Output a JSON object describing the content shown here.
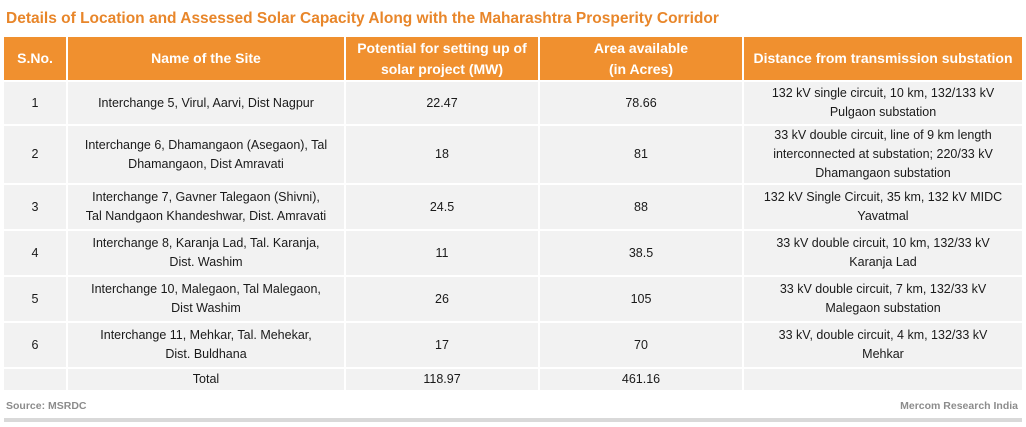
{
  "title": "Details of Location and Assessed Solar Capacity Along with the Maharashtra Prosperity Corridor",
  "headers": {
    "sno": "S.No.",
    "site": "Name of the Site",
    "potential_l1": "Potential for setting up of",
    "potential_l2": "solar project (MW)",
    "area_l1": "Area available",
    "area_l2": "(in Acres)",
    "distance": "Distance from transmission substation"
  },
  "rows": [
    {
      "sno": "1",
      "site": [
        "Interchange 5, Virul, Aarvi, Dist Nagpur"
      ],
      "potential": "22.47",
      "area": "78.66",
      "distance": [
        "132 kV single circuit, 10 km, 132/133 kV",
        "Pulgaon substation"
      ]
    },
    {
      "sno": "2",
      "site": [
        "Interchange 6, Dhamangaon (Asegaon), Tal",
        "Dhamangaon, Dist Amravati"
      ],
      "potential": "18",
      "area": "81",
      "distance": [
        "33 kV double circuit, line of 9 km length",
        "interconnected at substation; 220/33 kV",
        "Dhamangaon substation"
      ]
    },
    {
      "sno": "3",
      "site": [
        "Interchange 7, Gavner Talegaon (Shivni),",
        "Tal Nandgaon Khandeshwar, Dist. Amravati"
      ],
      "potential": "24.5",
      "area": "88",
      "distance": [
        "132 kV Single Circuit, 35 km, 132 kV MIDC",
        "Yavatmal"
      ]
    },
    {
      "sno": "4",
      "site": [
        "Interchange 8, Karanja Lad, Tal. Karanja,",
        "Dist. Washim"
      ],
      "potential": "11",
      "area": "38.5",
      "distance": [
        "33 kV double circuit, 10 km, 132/33 kV",
        "Karanja Lad"
      ]
    },
    {
      "sno": "5",
      "site": [
        "Interchange 10, Malegaon, Tal Malegaon,",
        "Dist Washim"
      ],
      "potential": "26",
      "area": "105",
      "distance": [
        "33 kV double circuit, 7 km, 132/33 kV",
        "Malegaon substation"
      ]
    },
    {
      "sno": "6",
      "site": [
        "Interchange 11, Mehkar, Tal. Mehekar,",
        "Dist. Buldhana"
      ],
      "potential": "17",
      "area": "70",
      "distance": [
        "33 kV, double circuit, 4 km, 132/33 kV",
        "Mehkar"
      ]
    }
  ],
  "total": {
    "label": "Total",
    "potential": "118.97",
    "area": "461.16"
  },
  "source": "Source: MSRDC",
  "credit": "Mercom Research India",
  "colors": {
    "accent": "#F0902F",
    "title": "#E8862A",
    "row_bg": "#F2F2F2"
  }
}
